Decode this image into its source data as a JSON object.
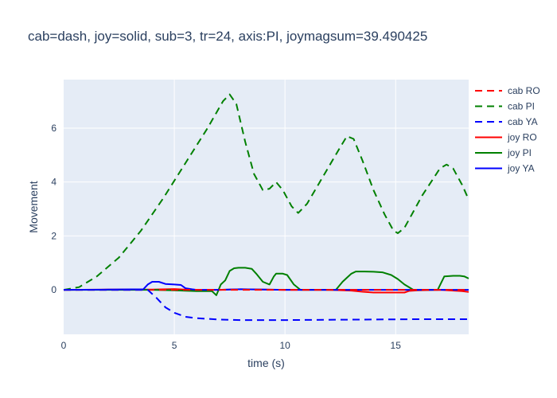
{
  "chart_data": {
    "type": "line",
    "title": "cab=dash, joy=solid, sub=3, tr=24, axis:PI, joymagsum=39.490425",
    "xlabel": "time (s)",
    "ylabel": "Movement",
    "xlim": [
      0,
      18.3
    ],
    "ylim": [
      -1.65,
      7.8
    ],
    "xticks": [
      0,
      5,
      10,
      15
    ],
    "xtick_labels": [
      "0",
      "5",
      "10",
      "15"
    ],
    "yticks": [
      0,
      2,
      4,
      6
    ],
    "ytick_labels": [
      "0",
      "2",
      "4",
      "6"
    ],
    "grid": true,
    "legend_position": "top-right",
    "series": [
      {
        "name": "cab RO",
        "color": "#ff0000",
        "dash": "dash",
        "x": [
          0,
          2,
          4,
          6,
          8,
          10,
          12,
          14,
          16,
          18.3
        ],
        "y": [
          0,
          0,
          0,
          0,
          0,
          0,
          0,
          0,
          0,
          0
        ]
      },
      {
        "name": "cab PI",
        "color": "#008000",
        "dash": "dash",
        "x": [
          0,
          0.7,
          1.5,
          2.5,
          3.5,
          4.5,
          5.5,
          6.5,
          7.2,
          7.5,
          7.8,
          8.2,
          8.6,
          9.0,
          9.3,
          9.6,
          9.9,
          10.3,
          10.6,
          11.0,
          11.5,
          12.0,
          12.5,
          12.8,
          13.1,
          13.5,
          14.0,
          14.5,
          14.9,
          15.1,
          15.4,
          15.8,
          16.2,
          16.6,
          17.0,
          17.3,
          17.6,
          18.0,
          18.3
        ],
        "y": [
          0,
          0.1,
          0.5,
          1.2,
          2.2,
          3.4,
          4.7,
          6.0,
          7.0,
          7.25,
          6.9,
          5.5,
          4.3,
          3.7,
          3.75,
          4.0,
          3.7,
          3.1,
          2.85,
          3.2,
          3.9,
          4.6,
          5.3,
          5.7,
          5.6,
          4.8,
          3.7,
          2.8,
          2.2,
          2.1,
          2.3,
          2.9,
          3.5,
          4.0,
          4.5,
          4.65,
          4.5,
          3.9,
          3.35
        ]
      },
      {
        "name": "cab YA",
        "color": "#0000ff",
        "dash": "dash",
        "x": [
          0,
          3.8,
          4.2,
          4.6,
          5.0,
          5.5,
          6.0,
          7.0,
          8.0,
          9.0,
          10.0,
          12.0,
          14.0,
          16.0,
          18.3
        ],
        "y": [
          0,
          0,
          -0.3,
          -0.65,
          -0.85,
          -1.0,
          -1.05,
          -1.1,
          -1.12,
          -1.12,
          -1.12,
          -1.11,
          -1.1,
          -1.09,
          -1.09
        ]
      },
      {
        "name": "joy RO",
        "color": "#ff0000",
        "dash": "solid",
        "x": [
          0,
          2,
          4,
          5,
          6,
          7,
          8,
          10,
          12,
          13.0,
          13.5,
          14.0,
          14.5,
          15.0,
          15.4,
          15.6,
          16,
          17,
          18.0,
          18.3
        ],
        "y": [
          0,
          0.01,
          0.01,
          0.03,
          -0.01,
          0.0,
          0.02,
          0.0,
          0.0,
          -0.03,
          -0.07,
          -0.1,
          -0.1,
          -0.1,
          -0.1,
          -0.04,
          -0.02,
          0.0,
          -0.05,
          -0.08
        ]
      },
      {
        "name": "joy PI",
        "color": "#008000",
        "dash": "solid",
        "x": [
          0,
          1,
          2,
          3,
          4,
          5,
          6,
          6.7,
          6.9,
          7.1,
          7.3,
          7.5,
          7.7,
          7.9,
          8.2,
          8.5,
          8.7,
          9.0,
          9.3,
          9.5,
          9.6,
          9.9,
          10.1,
          10.4,
          10.7,
          11,
          11.5,
          12,
          12.3,
          12.6,
          12.8,
          13.0,
          13.2,
          13.6,
          14.0,
          14.4,
          14.8,
          15.1,
          15.4,
          15.8,
          16.2,
          16.6,
          16.9,
          17.2,
          17.6,
          17.9,
          18.1,
          18.3
        ],
        "y": [
          0,
          0,
          0,
          0,
          0,
          -0.02,
          -0.05,
          -0.05,
          -0.2,
          0.2,
          0.35,
          0.7,
          0.8,
          0.82,
          0.82,
          0.78,
          0.6,
          0.3,
          0.2,
          0.5,
          0.6,
          0.6,
          0.55,
          0.2,
          0.0,
          0.0,
          0.0,
          0.0,
          0.0,
          0.3,
          0.45,
          0.6,
          0.68,
          0.68,
          0.67,
          0.65,
          0.55,
          0.4,
          0.2,
          0.0,
          0.0,
          0.0,
          0.0,
          0.5,
          0.52,
          0.52,
          0.5,
          0.42
        ]
      },
      {
        "name": "joy YA",
        "color": "#0000ff",
        "dash": "solid",
        "x": [
          0,
          2,
          3.6,
          3.8,
          4.0,
          4.3,
          4.6,
          5.0,
          5.3,
          5.5,
          5.8,
          6,
          7,
          8,
          10,
          12,
          14,
          16,
          18.3
        ],
        "y": [
          0,
          0.01,
          0.02,
          0.2,
          0.3,
          0.3,
          0.22,
          0.2,
          0.18,
          0.06,
          0.02,
          0.0,
          0.0,
          0.02,
          0.0,
          0.0,
          0.0,
          0.0,
          0.0
        ]
      }
    ]
  }
}
